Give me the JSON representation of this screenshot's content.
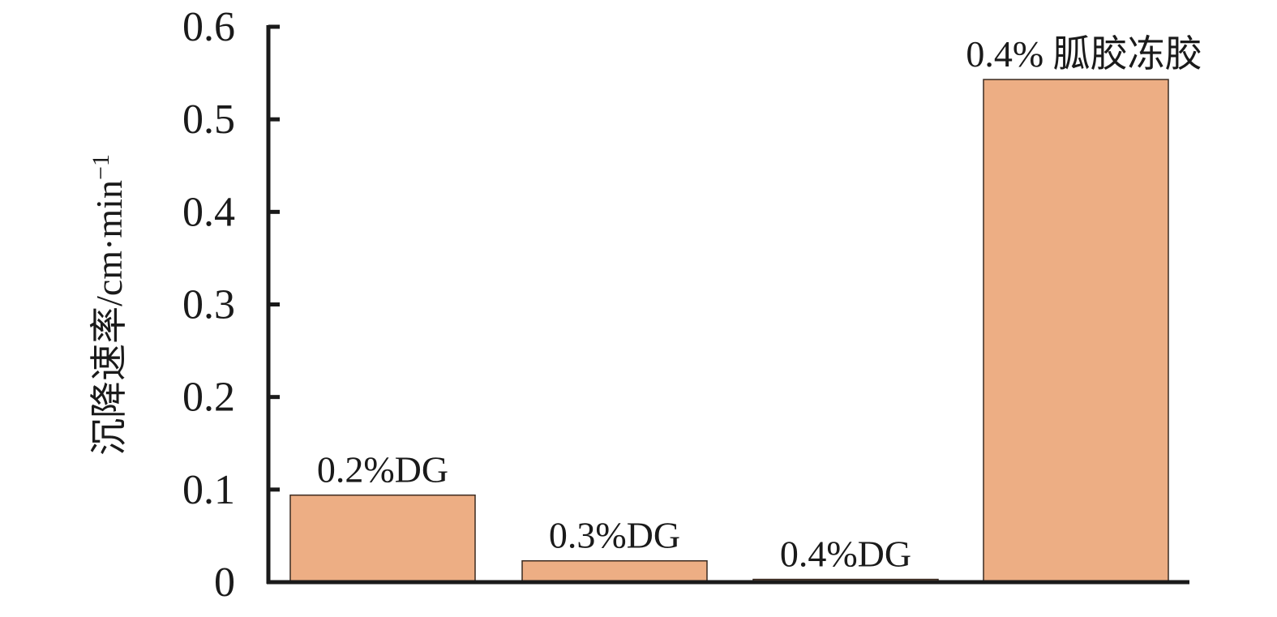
{
  "chart_data": {
    "type": "bar",
    "categories": [
      "0.2%DG",
      "0.3%DG",
      "0.4%DG",
      "0.4% 胍胶冻胶"
    ],
    "values": [
      0.094,
      0.023,
      0.003,
      0.543
    ],
    "title": "",
    "xlabel": "",
    "ylabel": "沉降速率/cm·min",
    "ylabel_superscript": "−1",
    "ylim": [
      0,
      0.6
    ],
    "yticks": [
      0,
      0.1,
      0.2,
      0.3,
      0.4,
      0.5,
      0.6
    ],
    "ytick_labels": [
      "0",
      "0.1",
      "0.2",
      "0.3",
      "0.4",
      "0.5",
      "0.6"
    ],
    "grid": false,
    "legend": "none",
    "colors": {
      "bar_fill": "#edae84",
      "bar_stroke": "#3a2a20",
      "axis": "#1a1a1a"
    }
  }
}
